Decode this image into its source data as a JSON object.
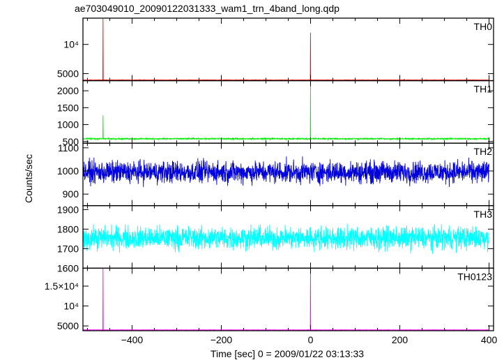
{
  "chart_data": {
    "type": "line",
    "title": "ae703049010_20090122031333_wam1_trn_4band_long.qdp",
    "xlabel": "Time [sec] 0 = 2009/01/22 03:13:33",
    "ylabel": "Counts/sec",
    "xlim": [
      -510,
      410
    ],
    "x_ticks": [
      -400,
      -200,
      0,
      200,
      400
    ],
    "x_tick_labels": [
      "−400",
      "−200",
      "0",
      "200",
      "400"
    ],
    "panels": [
      {
        "name": "TH0",
        "color": "#ff0000",
        "ylim": [
          3800,
          14500
        ],
        "y_ticks": [
          5000,
          10000
        ],
        "y_tick_labels": [
          "5000",
          "10⁴"
        ],
        "baseline": 3900,
        "noise": 60,
        "spikes": [
          {
            "x": -465,
            "y": 14400
          },
          {
            "x": 0,
            "y": 12000
          },
          {
            "x": 210,
            "y": 4100
          }
        ]
      },
      {
        "name": "TH1",
        "color": "#00ee00",
        "ylim": [
          450,
          2300
        ],
        "y_ticks": [
          500,
          1000,
          1500,
          2000
        ],
        "y_tick_labels": [
          "500",
          "1000",
          "1500",
          "2000"
        ],
        "baseline": 580,
        "noise": 30,
        "spikes": [
          {
            "x": -465,
            "y": 1270
          },
          {
            "x": 0,
            "y": 2300
          }
        ]
      },
      {
        "name": "TH2",
        "color": "#0000dd",
        "ylim": [
          850,
          1120
        ],
        "y_ticks": [
          900,
          1000,
          1100
        ],
        "y_tick_labels": [
          "900",
          "1000",
          "1100"
        ],
        "baseline": 995,
        "noise": 70,
        "spikes": []
      },
      {
        "name": "TH3",
        "color": "#00ffff",
        "ylim": [
          1600,
          1920
        ],
        "y_ticks": [
          1600,
          1700,
          1800,
          1900
        ],
        "y_tick_labels": [
          "1600",
          "1700",
          "1800",
          "1900"
        ],
        "baseline": 1755,
        "noise": 85,
        "spikes": []
      },
      {
        "name": "TH0123",
        "color": "#ff00ff",
        "ylim": [
          3800,
          19500
        ],
        "y_ticks": [
          5000,
          10000,
          15000
        ],
        "y_tick_labels": [
          "5000",
          "10⁴",
          "1.5×10⁴"
        ],
        "baseline": 4000,
        "noise": 70,
        "spikes": [
          {
            "x": -465,
            "y": 19400
          },
          {
            "x": 0,
            "y": 18900
          }
        ]
      }
    ]
  }
}
